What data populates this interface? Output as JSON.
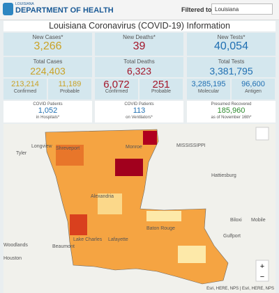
{
  "header": {
    "logo_top": "LOUISIANA",
    "logo_main": "DEPARTMENT OF HEALTH",
    "filter_label": "Filtered to:",
    "filter_value": "Louisiana"
  },
  "title": "Louisiana Coronavirus (COVID-19) Information",
  "cards": [
    {
      "label": "New Cases*",
      "value": "3,266"
    },
    {
      "label": "New Deaths*",
      "value": "39"
    },
    {
      "label": "New Tests*",
      "value": "40,054"
    },
    {
      "label": "Total Cases",
      "value": "224,403"
    },
    {
      "label": "Total Deaths",
      "value": "6,323"
    },
    {
      "label": "Total Tests",
      "value": "3,381,795"
    }
  ],
  "splits": [
    [
      {
        "value": "213,214",
        "label": "Confirmed"
      },
      {
        "value": "11,189",
        "label": "Probable"
      }
    ],
    [
      {
        "value": "6,072",
        "label": "Confirmed"
      },
      {
        "value": "251",
        "label": "Probable"
      }
    ],
    [
      {
        "value": "3,285,195",
        "label": "Molecular"
      },
      {
        "value": "96,600",
        "label": "Antigen"
      }
    ]
  ],
  "status": [
    {
      "label": "COVID Patients",
      "value": "1,052",
      "note": "in Hospitals*"
    },
    {
      "label": "COVID Patients",
      "value": "113",
      "note": "on Ventilators*"
    },
    {
      "label": "Presumed Recovered",
      "value": "185,960",
      "note": "as of November 16th*"
    }
  ],
  "map": {
    "places": [
      "Tyler",
      "Longview",
      "Shreveport",
      "Monroe",
      "MISSISSIPPI",
      "Hattiesburg",
      "Alexandria",
      "Lafayette",
      "Baton Rouge",
      "Lake Charles",
      "Beaumont",
      "Woodlands",
      "Houston",
      "Biloxi",
      "Gulfport",
      "Mobile"
    ],
    "attribution": "Esri, HERE, NPS | Esri, HERE, NPS"
  }
}
